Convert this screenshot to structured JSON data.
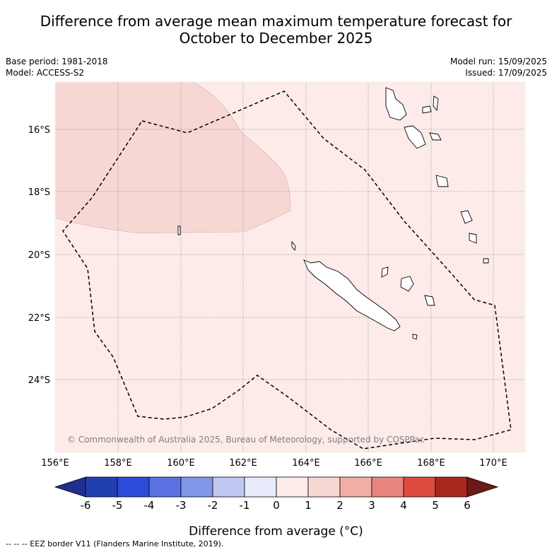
{
  "title": {
    "line1": "Difference from average mean maximum temperature forecast for",
    "line2": "October to December 2025"
  },
  "meta": {
    "base_period": "Base period: 1981-2018",
    "model": "Model: ACCESS-S2",
    "model_run": "Model run: 15/09/2025",
    "issued": "Issued: 17/09/2025"
  },
  "map": {
    "lon_labels": [
      "156°E",
      "158°E",
      "160°E",
      "162°E",
      "164°E",
      "166°E",
      "168°E",
      "170°E"
    ],
    "lat_labels": [
      "16°S",
      "18°S",
      "20°S",
      "22°S",
      "24°S"
    ],
    "copyright": "© Commonwealth of Australia 2025, Bureau of Meteorology, supported by COSPPac",
    "colors": {
      "background_class": "#fcebe9",
      "region_class": "#f7d7d4",
      "eez_border": "#000000"
    }
  },
  "colorbar": {
    "tick_labels": [
      "-6",
      "-5",
      "-4",
      "-3",
      "-2",
      "-1",
      "0",
      "1",
      "2",
      "3",
      "4",
      "5",
      "6"
    ],
    "colors": [
      "#1f2f8e",
      "#223fb0",
      "#2e4bdb",
      "#5a72e2",
      "#8296ea",
      "#c0c8f2",
      "#e8ebfa",
      "#fcebe9",
      "#f7d7d4",
      "#f1aea7",
      "#e8867d",
      "#dc4b3e",
      "#a8281f",
      "#6b1a15"
    ],
    "label": "Difference from average (°C)"
  },
  "footer": {
    "legend": "--  --  -- EEZ border V11 (Flanders Marine Institute, 2019)."
  }
}
